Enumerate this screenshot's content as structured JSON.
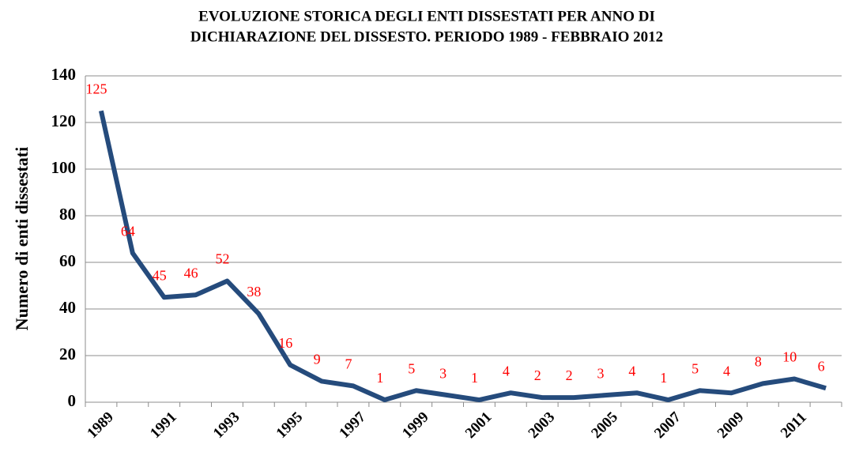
{
  "chart_data": {
    "type": "line",
    "title": [
      "EVOLUZIONE STORICA DEGLI ENTI DISSESTATI PER ANNO DI",
      "DICHIARAZIONE DEL DISSESTO. PERIODO 1989 - FEBBRAIO 2012"
    ],
    "y_label": "Numero di enti dissestati",
    "categories": [
      "1989",
      null,
      "1991",
      null,
      "1993",
      null,
      "1995",
      null,
      "1997",
      null,
      "1999",
      null,
      "2001",
      null,
      "2003",
      null,
      "2005",
      null,
      "2007",
      null,
      "2009",
      null,
      "2011",
      null
    ],
    "values": [
      125,
      64,
      45,
      46,
      52,
      38,
      16,
      9,
      7,
      1,
      5,
      3,
      1,
      4,
      2,
      2,
      3,
      4,
      1,
      5,
      4,
      8,
      10,
      6
    ],
    "color": "#254b7c",
    "label_color": "#ff0000",
    "ylim": [
      0,
      140
    ],
    "yticks": [
      0,
      20,
      40,
      60,
      80,
      100,
      120,
      140
    ],
    "grid": true
  }
}
